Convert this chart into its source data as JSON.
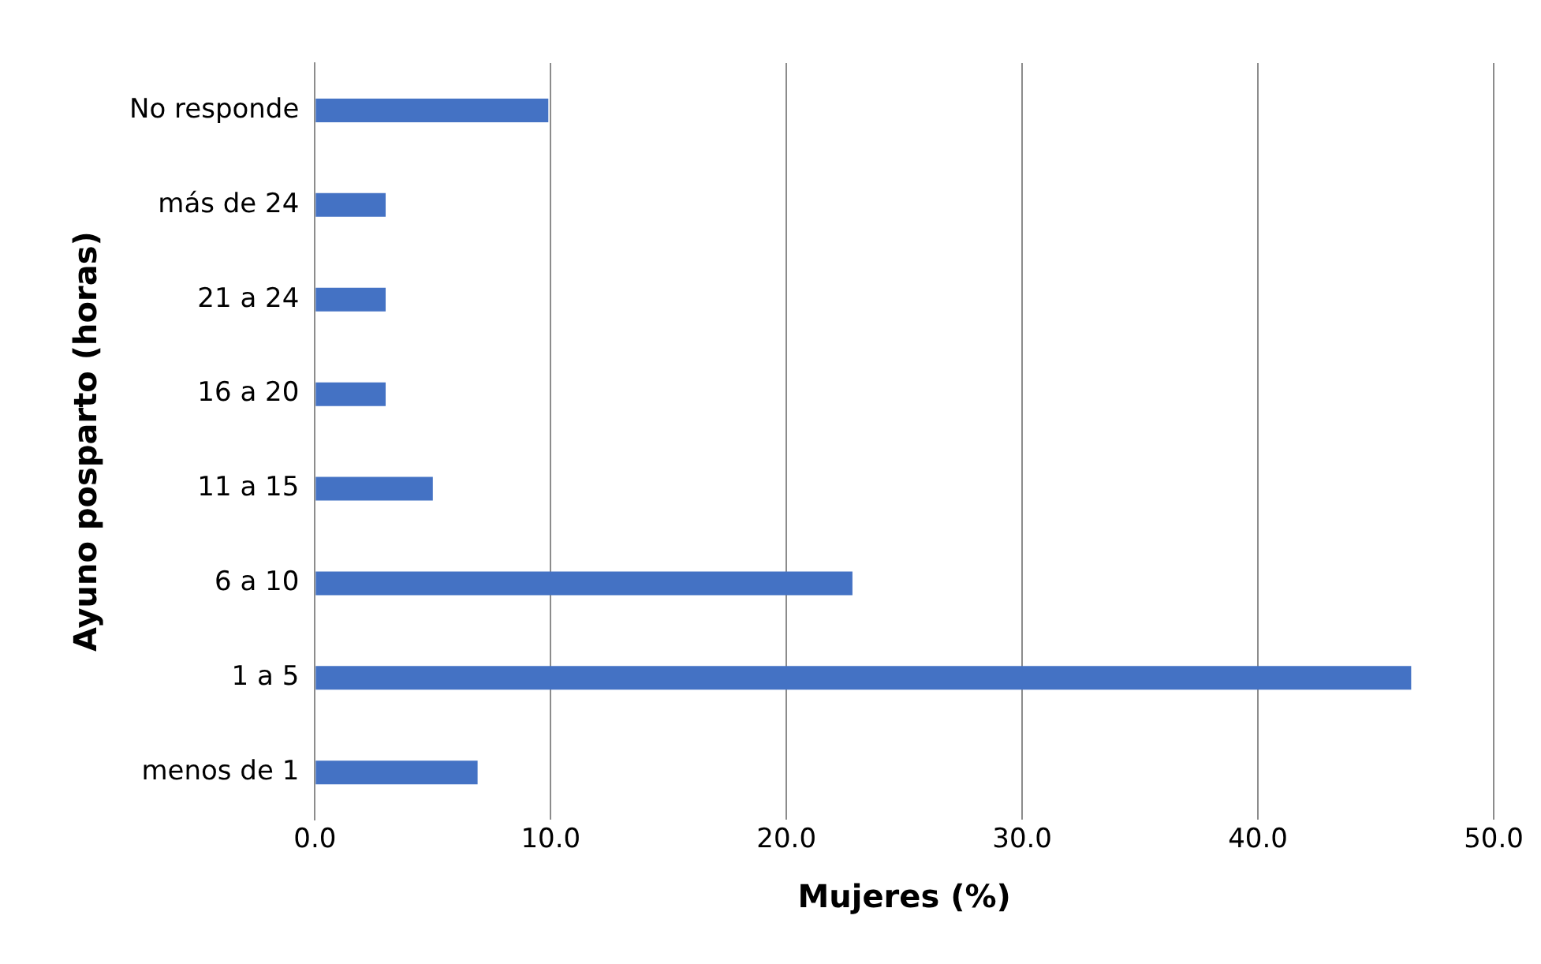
{
  "chart_data": {
    "type": "bar",
    "orientation": "horizontal",
    "xlabel": "Mujeres (%)",
    "ylabel": "Ayuno posparto (horas)",
    "categories": [
      "No responde",
      "más de 24",
      "21 a 24",
      "16 a 20",
      "11 a 15",
      "6 a 10",
      "1 a 5",
      "menos de 1"
    ],
    "values": [
      9.9,
      3.0,
      3.0,
      3.0,
      5.0,
      22.8,
      46.5,
      6.9
    ],
    "color": "#4472c4",
    "xlim": [
      0,
      50
    ],
    "xticks": [
      {
        "value": 0,
        "label": "0.0"
      },
      {
        "value": 10,
        "label": "10.0"
      },
      {
        "value": 20,
        "label": "20.0"
      },
      {
        "value": 30,
        "label": "30.0"
      },
      {
        "value": 40,
        "label": "40.0"
      },
      {
        "value": 50,
        "label": "50.0"
      }
    ],
    "grid": "x",
    "legend": false
  }
}
